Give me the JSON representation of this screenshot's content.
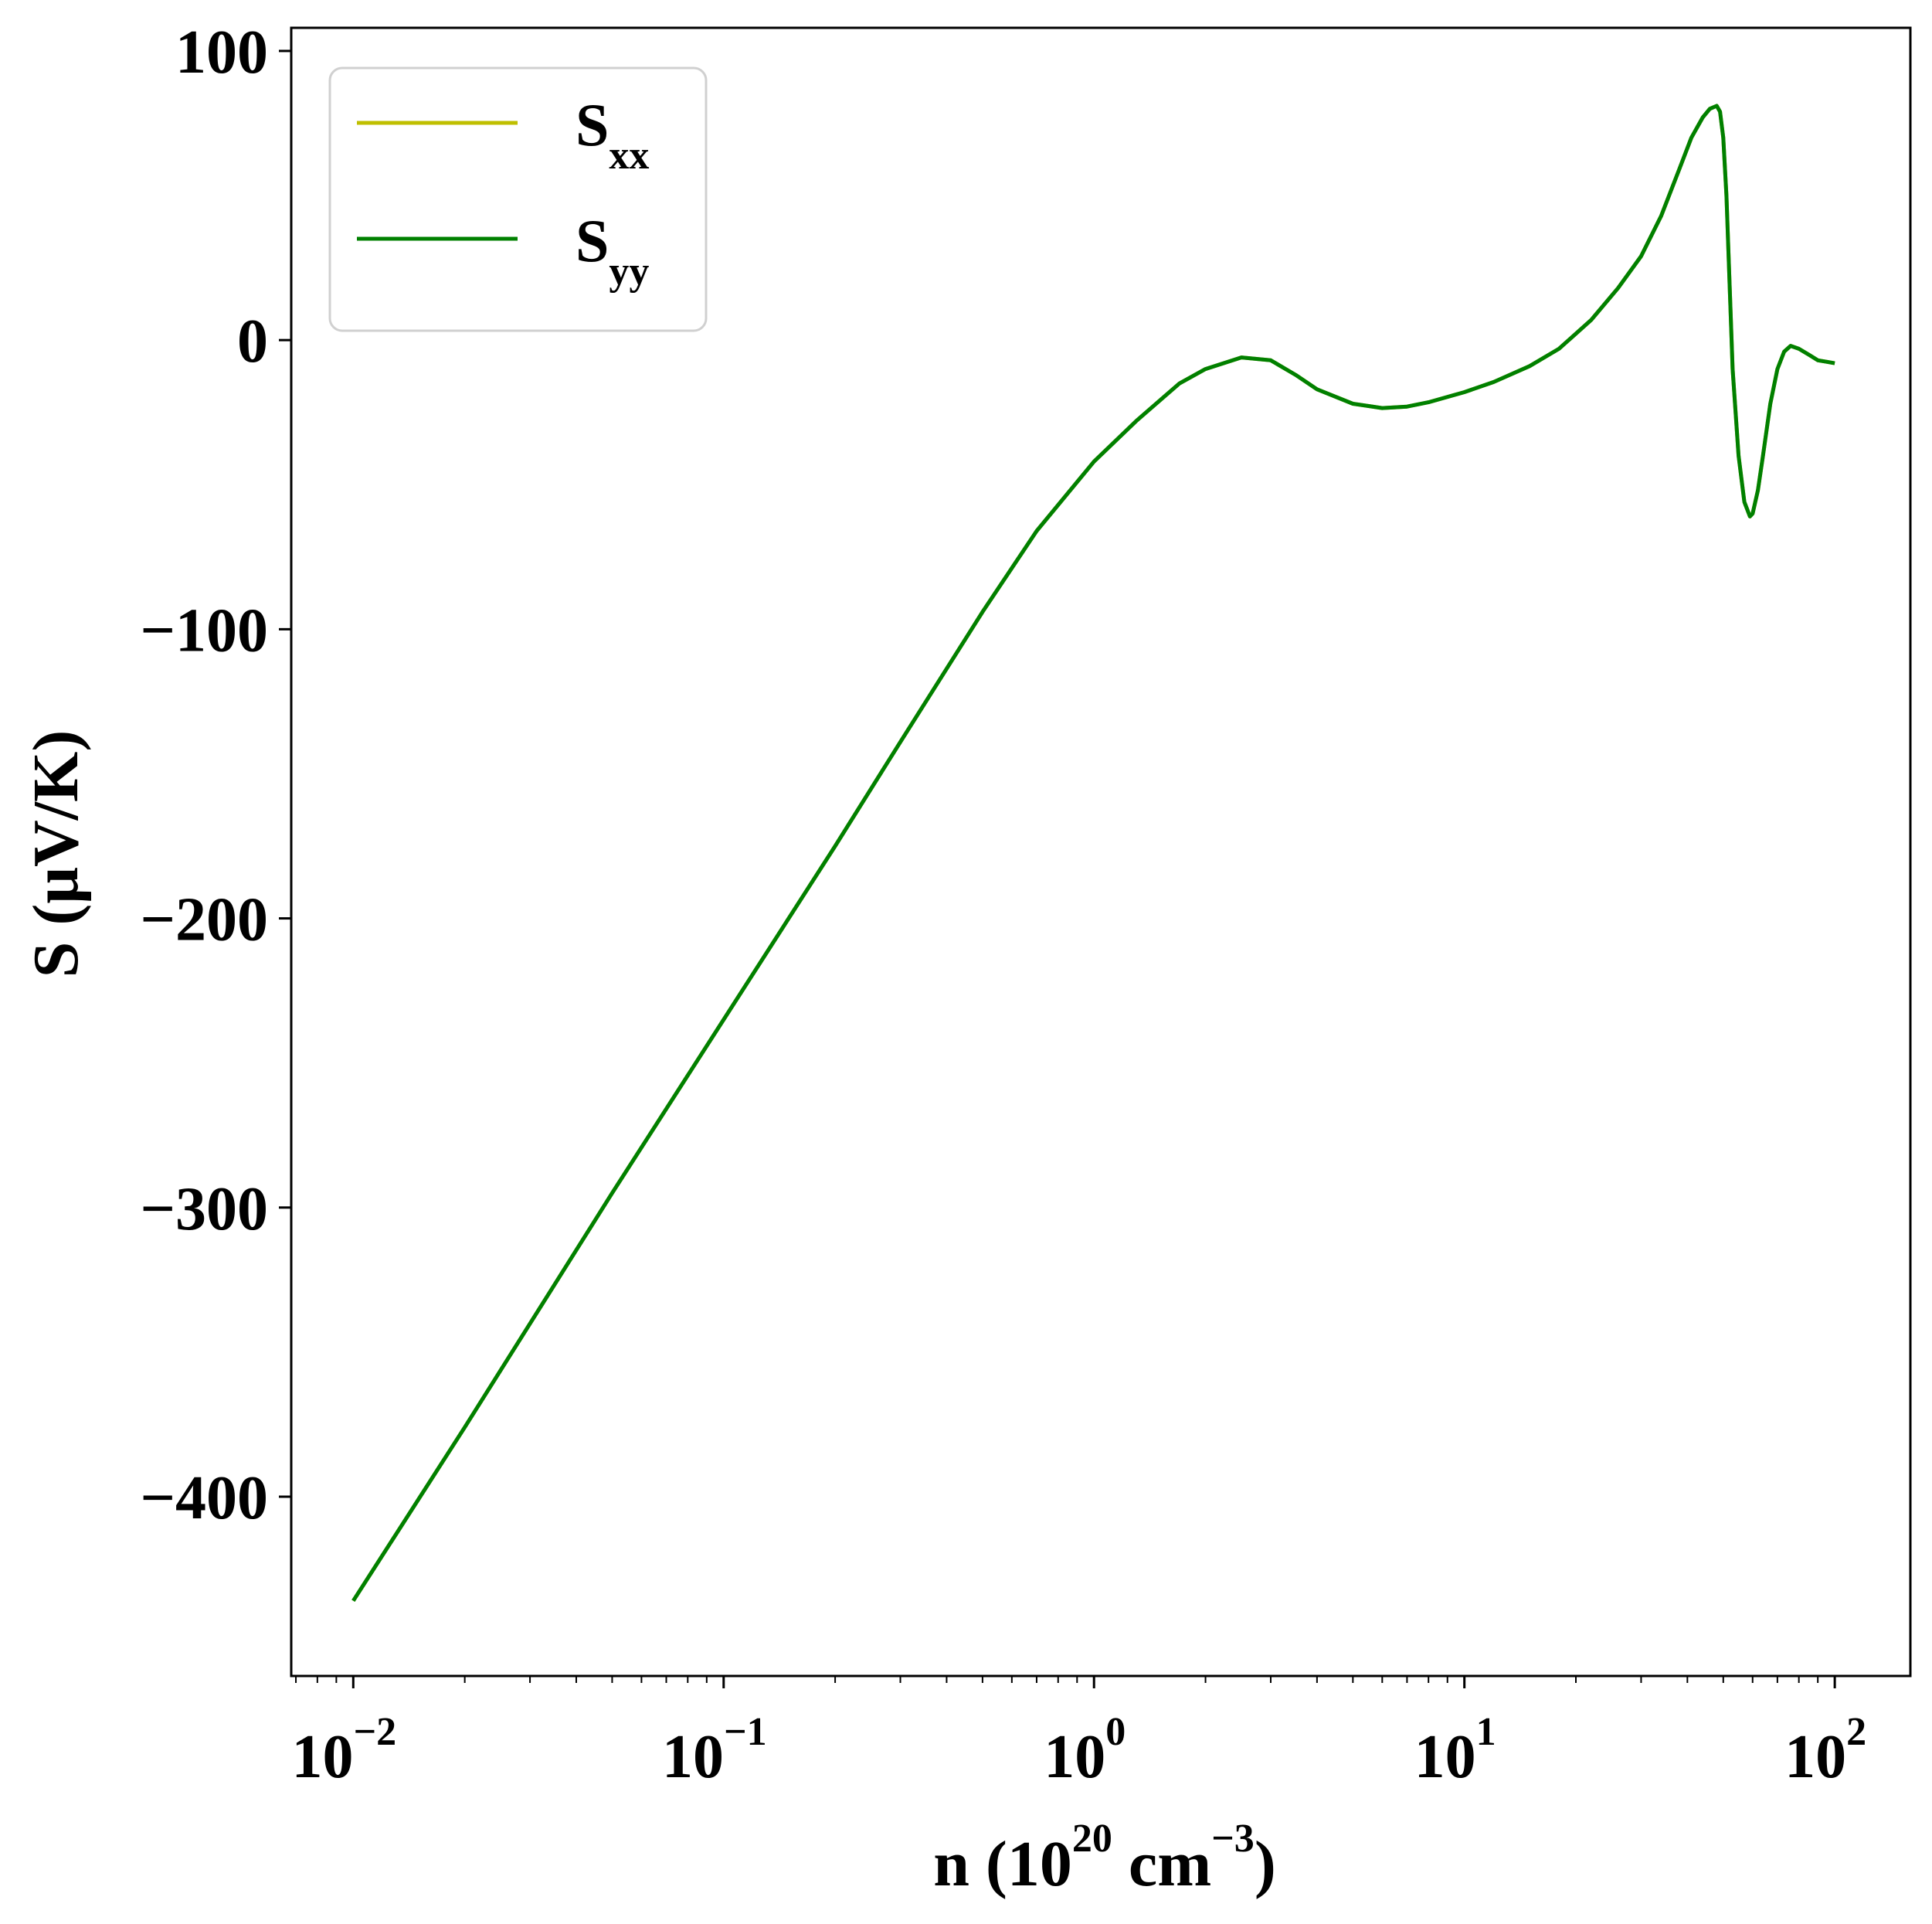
{
  "chart_data": {
    "type": "line",
    "xscale": "log",
    "xlim": [
      0.0068,
      160
    ],
    "ylim": [
      -462,
      108
    ],
    "xlabel": {
      "base": "n (10",
      "sup1": "20",
      "mid": " cm",
      "sup2": "−3",
      "end": ")"
    },
    "ylabel": "S (μV/K)",
    "x_ticks": [
      {
        "value": 0.01,
        "base": "10",
        "exp": "−2"
      },
      {
        "value": 0.1,
        "base": "10",
        "exp": "−1"
      },
      {
        "value": 1,
        "base": "10",
        "exp": "0"
      },
      {
        "value": 10,
        "base": "10",
        "exp": "1"
      },
      {
        "value": 100,
        "base": "10",
        "exp": "2"
      }
    ],
    "y_ticks": [
      {
        "value": 100,
        "label": "100"
      },
      {
        "value": 0,
        "label": "0"
      },
      {
        "value": -100,
        "label": "−100"
      },
      {
        "value": -200,
        "label": "−200"
      },
      {
        "value": -300,
        "label": "−300"
      },
      {
        "value": -400,
        "label": "−400"
      }
    ],
    "grid": false,
    "legend_position": "top-left",
    "series": [
      {
        "name": "S",
        "sub": "xx",
        "color": "#bfbf00",
        "x": [
          0.01,
          0.02,
          0.05,
          0.1,
          0.2,
          0.3,
          0.5,
          0.7,
          1.0,
          1.3,
          1.7,
          2.0,
          2.5,
          3.0,
          3.5,
          4.0,
          5.0,
          6.0,
          7.0,
          8.0,
          10,
          12,
          15,
          18,
          22,
          26,
          30,
          34,
          38,
          41,
          44,
          46,
          48,
          49,
          50,
          51,
          53,
          55,
          57,
          59,
          60,
          62,
          64,
          67,
          70,
          73,
          76,
          80,
          85,
          90,
          95,
          100
        ],
        "y": [
          -436,
          -376,
          -295,
          -235,
          -175,
          -139,
          -94,
          -66,
          -42,
          -28,
          -15,
          -10,
          -6,
          -7,
          -12,
          -17,
          -22,
          -23.5,
          -23,
          -21.5,
          -18,
          -14.5,
          -9,
          -3,
          7,
          18,
          29,
          43,
          59,
          70,
          77,
          80,
          81,
          79,
          70,
          50,
          -10,
          -40,
          -56,
          -61,
          -60,
          -52,
          -40,
          -22,
          -10,
          -4,
          -2,
          -3,
          -5,
          -7,
          -7.5,
          -8
        ]
      },
      {
        "name": "S",
        "sub": "yy",
        "color": "#008000",
        "x": [
          0.01,
          0.02,
          0.05,
          0.1,
          0.2,
          0.3,
          0.5,
          0.7,
          1.0,
          1.3,
          1.7,
          2.0,
          2.5,
          3.0,
          3.5,
          4.0,
          5.0,
          6.0,
          7.0,
          8.0,
          10,
          12,
          15,
          18,
          22,
          26,
          30,
          34,
          38,
          41,
          44,
          46,
          48,
          49,
          50,
          51,
          53,
          55,
          57,
          59,
          60,
          62,
          64,
          67,
          70,
          73,
          76,
          80,
          85,
          90,
          95,
          100
        ],
        "y": [
          -436,
          -376,
          -295,
          -235,
          -175,
          -139,
          -94,
          -66,
          -42,
          -28,
          -15,
          -10,
          -6,
          -7,
          -12,
          -17,
          -22,
          -23.5,
          -23,
          -21.5,
          -18,
          -14.5,
          -9,
          -3,
          7,
          18,
          29,
          43,
          59,
          70,
          77,
          80,
          81,
          79,
          70,
          50,
          -10,
          -40,
          -56,
          -61,
          -60,
          -52,
          -40,
          -22,
          -10,
          -4,
          -2,
          -3,
          -5,
          -7,
          -7.5,
          -8
        ]
      }
    ]
  }
}
